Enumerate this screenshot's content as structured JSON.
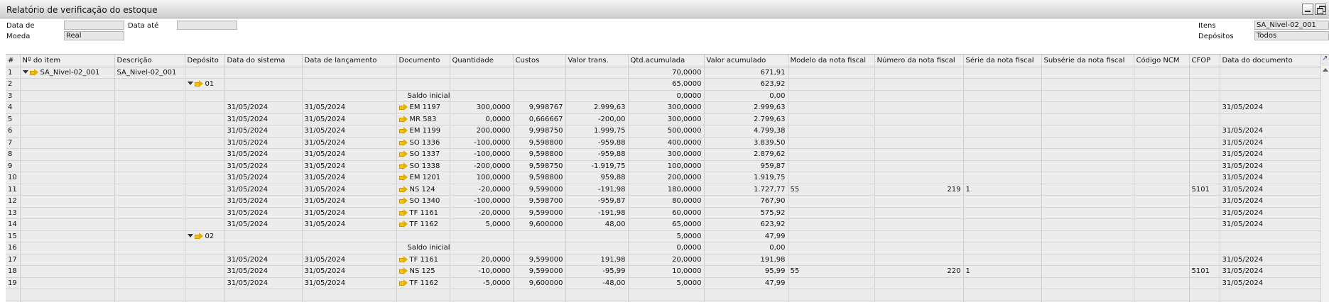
{
  "window": {
    "title": "Relatório de verificação do estoque"
  },
  "filters": {
    "data_de_label": "Data de",
    "data_ate_label": "Data até",
    "moeda_label": "Moeda",
    "moeda_value": "Real",
    "itens_label": "Itens",
    "itens_value": "SA_Nivel-02_001",
    "depositos_label": "Depósitos",
    "depositos_value": "Todos"
  },
  "grid": {
    "columns": [
      "#",
      "Nº do item",
      "Descrição",
      "Depósito",
      "Data do sistema",
      "Data de lançamento",
      "Documento",
      "Quantidade",
      "Custos",
      "Valor trans.",
      "Qtd.acumulada",
      "Valor acumulado",
      "Modelo da nota fiscal",
      "Número da nota fiscal",
      "Série da nota fiscal",
      "Subsérie da nota fiscal",
      "Código NCM",
      "CFOP",
      "Data do documento"
    ],
    "rows": [
      {
        "n": "1",
        "item": "SA_Nivel-02_001",
        "desc": "SA_Nivel-02_001",
        "dep": "",
        "dsis": "",
        "dlanc": "",
        "doc": "",
        "qtd": "",
        "custo": "",
        "vtrans": "",
        "qacum": "70,0000",
        "vacum": "671,91",
        "modelo": "",
        "numero": "",
        "serie": "",
        "subserie": "",
        "ncm": "",
        "cfop": "",
        "ddoc": ""
      },
      {
        "n": "2",
        "item": "",
        "desc": "",
        "dep": "01",
        "dsis": "",
        "dlanc": "",
        "doc": "",
        "qtd": "",
        "custo": "",
        "vtrans": "",
        "qacum": "65,0000",
        "vacum": "623,92",
        "modelo": "",
        "numero": "",
        "serie": "",
        "subserie": "",
        "ncm": "",
        "cfop": "",
        "ddoc": ""
      },
      {
        "n": "3",
        "item": "",
        "desc": "",
        "dep": "",
        "dsis": "",
        "dlanc": "",
        "doc": "Saldo inicial",
        "qtd": "",
        "custo": "",
        "vtrans": "",
        "qacum": "0,0000",
        "vacum": "0,00",
        "modelo": "",
        "numero": "",
        "serie": "",
        "subserie": "",
        "ncm": "",
        "cfop": "",
        "ddoc": ""
      },
      {
        "n": "4",
        "item": "",
        "desc": "",
        "dep": "",
        "dsis": "31/05/2024",
        "dlanc": "31/05/2024",
        "doc": "EM 1197",
        "qtd": "300,0000",
        "custo": "9,998767",
        "vtrans": "2.999,63",
        "qacum": "300,0000",
        "vacum": "2.999,63",
        "modelo": "",
        "numero": "",
        "serie": "",
        "subserie": "",
        "ncm": "",
        "cfop": "",
        "ddoc": "31/05/2024"
      },
      {
        "n": "5",
        "item": "",
        "desc": "",
        "dep": "",
        "dsis": "31/05/2024",
        "dlanc": "31/05/2024",
        "doc": "MR 583",
        "qtd": "0,0000",
        "custo": "0,666667",
        "vtrans": "-200,00",
        "qacum": "300,0000",
        "vacum": "2.799,63",
        "modelo": "",
        "numero": "",
        "serie": "",
        "subserie": "",
        "ncm": "",
        "cfop": "",
        "ddoc": ""
      },
      {
        "n": "6",
        "item": "",
        "desc": "",
        "dep": "",
        "dsis": "31/05/2024",
        "dlanc": "31/05/2024",
        "doc": "EM 1199",
        "qtd": "200,0000",
        "custo": "9,998750",
        "vtrans": "1.999,75",
        "qacum": "500,0000",
        "vacum": "4.799,38",
        "modelo": "",
        "numero": "",
        "serie": "",
        "subserie": "",
        "ncm": "",
        "cfop": "",
        "ddoc": "31/05/2024"
      },
      {
        "n": "7",
        "item": "",
        "desc": "",
        "dep": "",
        "dsis": "31/05/2024",
        "dlanc": "31/05/2024",
        "doc": "SO 1336",
        "qtd": "-100,0000",
        "custo": "9,598800",
        "vtrans": "-959,88",
        "qacum": "400,0000",
        "vacum": "3.839,50",
        "modelo": "",
        "numero": "",
        "serie": "",
        "subserie": "",
        "ncm": "",
        "cfop": "",
        "ddoc": "31/05/2024"
      },
      {
        "n": "8",
        "item": "",
        "desc": "",
        "dep": "",
        "dsis": "31/05/2024",
        "dlanc": "31/05/2024",
        "doc": "SO 1337",
        "qtd": "-100,0000",
        "custo": "9,598800",
        "vtrans": "-959,88",
        "qacum": "300,0000",
        "vacum": "2.879,62",
        "modelo": "",
        "numero": "",
        "serie": "",
        "subserie": "",
        "ncm": "",
        "cfop": "",
        "ddoc": "31/05/2024"
      },
      {
        "n": "9",
        "item": "",
        "desc": "",
        "dep": "",
        "dsis": "31/05/2024",
        "dlanc": "31/05/2024",
        "doc": "SO 1338",
        "qtd": "-200,0000",
        "custo": "9,598750",
        "vtrans": "-1.919,75",
        "qacum": "100,0000",
        "vacum": "959,87",
        "modelo": "",
        "numero": "",
        "serie": "",
        "subserie": "",
        "ncm": "",
        "cfop": "",
        "ddoc": "31/05/2024"
      },
      {
        "n": "10",
        "item": "",
        "desc": "",
        "dep": "",
        "dsis": "31/05/2024",
        "dlanc": "31/05/2024",
        "doc": "EM 1201",
        "qtd": "100,0000",
        "custo": "9,598800",
        "vtrans": "959,88",
        "qacum": "200,0000",
        "vacum": "1.919,75",
        "modelo": "",
        "numero": "",
        "serie": "",
        "subserie": "",
        "ncm": "",
        "cfop": "",
        "ddoc": "31/05/2024"
      },
      {
        "n": "11",
        "item": "",
        "desc": "",
        "dep": "",
        "dsis": "31/05/2024",
        "dlanc": "31/05/2024",
        "doc": "NS 124",
        "qtd": "-20,0000",
        "custo": "9,599000",
        "vtrans": "-191,98",
        "qacum": "180,0000",
        "vacum": "1.727,77",
        "modelo": "55",
        "numero": "219",
        "serie": "1",
        "subserie": "",
        "ncm": "",
        "cfop": "5101",
        "ddoc": "31/05/2024"
      },
      {
        "n": "12",
        "item": "",
        "desc": "",
        "dep": "",
        "dsis": "31/05/2024",
        "dlanc": "31/05/2024",
        "doc": "SO 1340",
        "qtd": "-100,0000",
        "custo": "9,598700",
        "vtrans": "-959,87",
        "qacum": "80,0000",
        "vacum": "767,90",
        "modelo": "",
        "numero": "",
        "serie": "",
        "subserie": "",
        "ncm": "",
        "cfop": "",
        "ddoc": "31/05/2024"
      },
      {
        "n": "13",
        "item": "",
        "desc": "",
        "dep": "",
        "dsis": "31/05/2024",
        "dlanc": "31/05/2024",
        "doc": "TF 1161",
        "qtd": "-20,0000",
        "custo": "9,599000",
        "vtrans": "-191,98",
        "qacum": "60,0000",
        "vacum": "575,92",
        "modelo": "",
        "numero": "",
        "serie": "",
        "subserie": "",
        "ncm": "",
        "cfop": "",
        "ddoc": "31/05/2024"
      },
      {
        "n": "14",
        "item": "",
        "desc": "",
        "dep": "",
        "dsis": "31/05/2024",
        "dlanc": "31/05/2024",
        "doc": "TF 1162",
        "qtd": "5,0000",
        "custo": "9,600000",
        "vtrans": "48,00",
        "qacum": "65,0000",
        "vacum": "623,92",
        "modelo": "",
        "numero": "",
        "serie": "",
        "subserie": "",
        "ncm": "",
        "cfop": "",
        "ddoc": "31/05/2024"
      },
      {
        "n": "15",
        "item": "",
        "desc": "",
        "dep": "02",
        "dsis": "",
        "dlanc": "",
        "doc": "",
        "qtd": "",
        "custo": "",
        "vtrans": "",
        "qacum": "5,0000",
        "vacum": "47,99",
        "modelo": "",
        "numero": "",
        "serie": "",
        "subserie": "",
        "ncm": "",
        "cfop": "",
        "ddoc": ""
      },
      {
        "n": "16",
        "item": "",
        "desc": "",
        "dep": "",
        "dsis": "",
        "dlanc": "",
        "doc": "Saldo inicial",
        "qtd": "",
        "custo": "",
        "vtrans": "",
        "qacum": "0,0000",
        "vacum": "0,00",
        "modelo": "",
        "numero": "",
        "serie": "",
        "subserie": "",
        "ncm": "",
        "cfop": "",
        "ddoc": ""
      },
      {
        "n": "17",
        "item": "",
        "desc": "",
        "dep": "",
        "dsis": "31/05/2024",
        "dlanc": "31/05/2024",
        "doc": "TF 1161",
        "qtd": "20,0000",
        "custo": "9,599000",
        "vtrans": "191,98",
        "qacum": "20,0000",
        "vacum": "191,98",
        "modelo": "",
        "numero": "",
        "serie": "",
        "subserie": "",
        "ncm": "",
        "cfop": "",
        "ddoc": "31/05/2024"
      },
      {
        "n": "18",
        "item": "",
        "desc": "",
        "dep": "",
        "dsis": "31/05/2024",
        "dlanc": "31/05/2024",
        "doc": "NS 125",
        "qtd": "-10,0000",
        "custo": "9,599000",
        "vtrans": "-95,99",
        "qacum": "10,0000",
        "vacum": "95,99",
        "modelo": "55",
        "numero": "220",
        "serie": "1",
        "subserie": "",
        "ncm": "",
        "cfop": "5101",
        "ddoc": "31/05/2024"
      },
      {
        "n": "19",
        "item": "",
        "desc": "",
        "dep": "",
        "dsis": "31/05/2024",
        "dlanc": "31/05/2024",
        "doc": "TF 1162",
        "qtd": "-5,0000",
        "custo": "9,600000",
        "vtrans": "-48,00",
        "qacum": "5,0000",
        "vacum": "47,99",
        "modelo": "",
        "numero": "",
        "serie": "",
        "subserie": "",
        "ncm": "",
        "cfop": "",
        "ddoc": "31/05/2024"
      }
    ],
    "empty_rows": 2
  },
  "icons": {
    "link_arrow": "link-arrow-icon",
    "expand": "collapse-triangle-icon"
  },
  "colors": {
    "link_arrow": "#f0c020",
    "grid_bg": "#ececec",
    "titlebar": "#cfcfcf"
  }
}
